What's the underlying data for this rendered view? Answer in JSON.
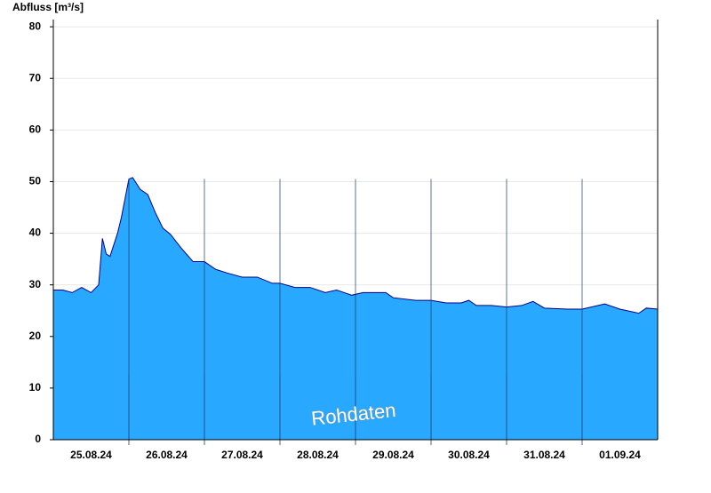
{
  "chart_data": {
    "type": "area",
    "title": "Abfluss [m³/s]",
    "annotation": "Rohdaten",
    "color": "#29a8ff",
    "line_color": "#00008b",
    "grid": true,
    "xlim": [
      0,
      8
    ],
    "xticks": [
      {
        "value": 0.5,
        "label": "25.08.24"
      },
      {
        "value": 1.5,
        "label": "26.08.24"
      },
      {
        "value": 2.5,
        "label": "27.08.24"
      },
      {
        "value": 3.5,
        "label": "28.08.24"
      },
      {
        "value": 4.5,
        "label": "29.08.24"
      },
      {
        "value": 5.5,
        "label": "30.08.24"
      },
      {
        "value": 6.5,
        "label": "31.08.24"
      },
      {
        "value": 7.5,
        "label": "01.09.24"
      }
    ],
    "ylim": [
      0,
      81.4
    ],
    "yticks": [
      0,
      10,
      20,
      30,
      40,
      50,
      60,
      70,
      80
    ],
    "x": [
      0,
      0.125,
      0.25,
      0.375,
      0.5,
      0.6,
      0.65,
      0.7,
      0.75,
      0.85,
      0.9,
      1.0,
      1.05,
      1.15,
      1.25,
      1.35,
      1.45,
      1.55,
      1.7,
      1.85,
      2.0,
      2.15,
      2.3,
      2.5,
      2.7,
      2.9,
      3.0,
      3.2,
      3.4,
      3.6,
      3.75,
      3.95,
      4.1,
      4.4,
      4.5,
      4.8,
      5.0,
      5.2,
      5.4,
      5.5,
      5.6,
      5.8,
      6.0,
      6.2,
      6.35,
      6.5,
      6.8,
      7.0,
      7.3,
      7.5,
      7.75,
      7.85,
      8.0
    ],
    "values": [
      29,
      29,
      28.5,
      29.5,
      28.5,
      30,
      39,
      36,
      35.5,
      40,
      43,
      50.5,
      50.8,
      48.5,
      47.5,
      44,
      41,
      39.8,
      37,
      34.5,
      34.5,
      33,
      32.3,
      31.5,
      31.5,
      30.3,
      30.3,
      29.5,
      29.5,
      28.5,
      29,
      28,
      28.5,
      28.5,
      27.5,
      27,
      27,
      26.5,
      26.5,
      27,
      26,
      26,
      25.7,
      26,
      26.8,
      25.5,
      25.3,
      25.3,
      26.3,
      25.3,
      24.5,
      25.5,
      25.3
    ]
  }
}
